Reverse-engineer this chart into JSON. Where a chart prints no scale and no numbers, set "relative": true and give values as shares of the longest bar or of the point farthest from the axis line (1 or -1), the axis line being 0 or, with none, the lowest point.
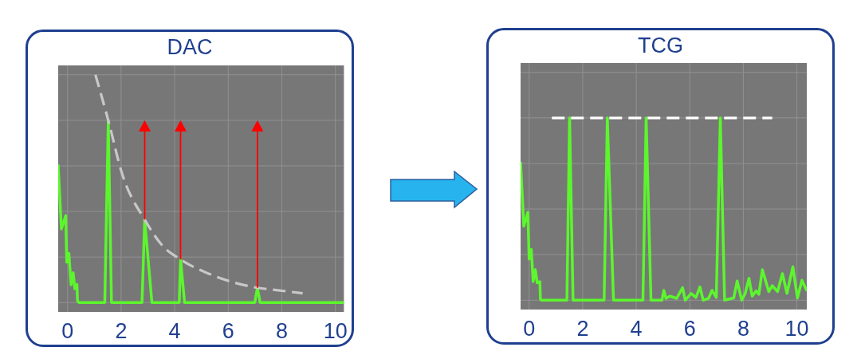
{
  "chart_data": [
    {
      "type": "line",
      "title": "DAC",
      "relative": true,
      "xlim": [
        -0.35,
        10.32
      ],
      "xticks": [
        0,
        2,
        4,
        6,
        8,
        10
      ],
      "grid": true,
      "tick_labels": "x",
      "series": [
        {
          "color": "#5cf52e",
          "x": [
            -0.35,
            -0.23,
            -0.07,
            -0.03,
            0.05,
            0.13,
            0.21,
            0.27,
            0.35,
            0.37,
            0.43,
            1.39,
            1.52,
            1.64,
            2.78,
            2.88,
            3.15,
            4.17,
            4.22,
            4.37,
            6.99,
            7.09,
            7.19,
            10.32
          ],
          "values": [
            0.606,
            0.323,
            0.382,
            0.177,
            0.216,
            0.078,
            0.131,
            0.061,
            0.08,
            0.008,
            0,
            0,
            0.8,
            0,
            0,
            0.364,
            0,
            0,
            0.189,
            0,
            0,
            0.065,
            0,
            0
          ]
        },
        {
          "color": "#c8c8c8",
          "line_style": "dashed",
          "x": [
            1.04,
            1.52,
            2.03,
            2.88,
            3.52,
            4.22,
            5.31,
            7.09,
            7.79,
            8.78
          ],
          "values": [
            1.0,
            0.8,
            0.568,
            0.364,
            0.253,
            0.189,
            0.125,
            0.065,
            0.055,
            0.041
          ]
        }
      ]
    },
    {
      "type": "line",
      "title": "TCG",
      "relative": true,
      "xlim": [
        -0.32,
        10.37
      ],
      "xticks": [
        0,
        2,
        4,
        6,
        8,
        10
      ],
      "grid": true,
      "tick_labels": "x",
      "series": [
        {
          "color": "#5cf52e",
          "x": [
            -0.32,
            -0.2,
            -0.05,
            0,
            0.08,
            0.15,
            0.23,
            0.3,
            0.4,
            0.42,
            0.45,
            1.41,
            1.51,
            1.64,
            2.8,
            2.92,
            3.15,
            4.25,
            4.37,
            4.55,
            4.96,
            5.03,
            5.11,
            5.26,
            5.51,
            5.73,
            5.83,
            6.05,
            6.23,
            6.38,
            6.5,
            6.7,
            6.83,
            6.99,
            7.14,
            7.3,
            7.64,
            7.77,
            7.94,
            8.07,
            8.21,
            8.33,
            8.48,
            8.58,
            8.71,
            8.95,
            9.08,
            9.28,
            9.46,
            9.63,
            9.85,
            10.02,
            10.19,
            10.37
          ],
          "values": [
            0.759,
            0.406,
            0.482,
            0.226,
            0.278,
            0.102,
            0.168,
            0.095,
            0.102,
            0.007,
            0,
            0,
            1,
            0,
            0,
            1,
            0,
            0,
            1,
            0,
            0,
            0.054,
            0.01,
            0.022,
            0.01,
            0.069,
            0,
            0.037,
            0.015,
            0.073,
            0,
            0.01,
            0.054,
            0.015,
            1,
            0,
            0.012,
            0.105,
            0,
            0.037,
            0.12,
            0.022,
            0.051,
            0.032,
            0.168,
            0.047,
            0.08,
            0.047,
            0.146,
            0.037,
            0.183,
            0.012,
            0.109,
            0.051
          ]
        },
        {
          "color": "#ffffff",
          "line_style": "dashed",
          "x": [
            0.85,
            9.08
          ],
          "values": [
            1,
            1
          ]
        }
      ]
    }
  ]
}
